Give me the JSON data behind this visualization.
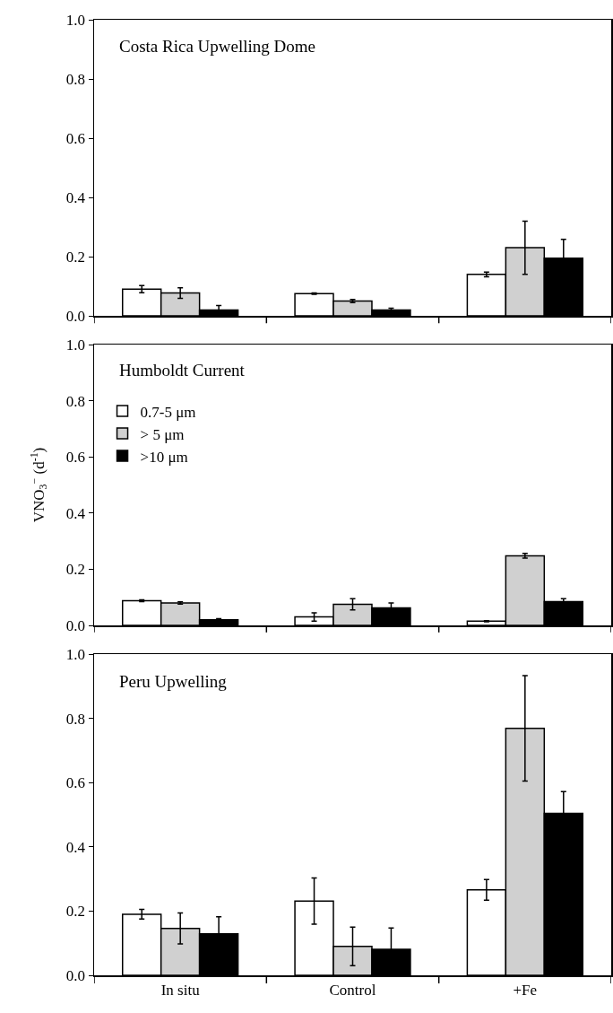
{
  "chart_data": [
    {
      "type": "bar",
      "title": "Costa Rica Upwelling Dome",
      "categories": [
        null,
        null,
        null
      ],
      "ylim": [
        0,
        1
      ],
      "yticks": [
        "0.0",
        0.2,
        0.4,
        0.6,
        0.8,
        "1.0"
      ],
      "tick_labels": "y",
      "grid": false,
      "legend": false,
      "series": [
        {
          "color": "#ffffff",
          "values": [
            0.09,
            0.075,
            0.14
          ],
          "errors": [
            0.012,
            0.002,
            0.008
          ]
        },
        {
          "color": "#d0d0d0",
          "values": [
            0.077,
            0.05,
            0.23
          ],
          "errors": [
            0.018,
            0.005,
            0.09
          ]
        },
        {
          "color": "#000000",
          "values": [
            0.02,
            0.02,
            0.195
          ],
          "errors": [
            0.015,
            0.006,
            0.063
          ]
        }
      ]
    },
    {
      "type": "bar",
      "title": "Humboldt Current",
      "ylabel": "VNO$_{3}$$^{−}$ (d$^{-1}$)",
      "categories": [
        null,
        null,
        null
      ],
      "ylim": [
        0,
        1
      ],
      "yticks": [
        "0.0",
        0.2,
        0.4,
        0.6,
        0.8,
        "1.0"
      ],
      "tick_labels": "y",
      "grid": false,
      "legend": "top left",
      "series": [
        {
          "name": "0.7-5 μm",
          "color": "#ffffff",
          "values": [
            0.088,
            0.03,
            0.015
          ],
          "errors": [
            0.003,
            0.015,
            0.002
          ]
        },
        {
          "name": "> 5 μm",
          "color": "#d0d0d0",
          "values": [
            0.08,
            0.075,
            0.248
          ],
          "errors": [
            0.004,
            0.02,
            0.008
          ]
        },
        {
          "name": ">10 μm",
          "color": "#000000",
          "values": [
            0.02,
            0.062,
            0.085
          ],
          "errors": [
            0.004,
            0.018,
            0.01
          ]
        }
      ]
    },
    {
      "type": "bar",
      "title": "Peru Upwelling",
      "categories": [
        "In situ",
        "Control",
        "+Fe"
      ],
      "ylim": [
        0,
        1
      ],
      "yticks": [
        "0.0",
        0.2,
        0.4,
        0.6,
        0.8,
        "1.0"
      ],
      "grid": false,
      "legend": false,
      "series": [
        {
          "color": "#ffffff",
          "values": [
            0.19,
            0.231,
            0.266
          ],
          "errors": [
            0.015,
            0.072,
            0.032
          ]
        },
        {
          "color": "#d0d0d0",
          "values": [
            0.146,
            0.09,
            0.769
          ],
          "errors": [
            0.048,
            0.06,
            0.164
          ]
        },
        {
          "color": "#000000",
          "values": [
            0.129,
            0.081,
            0.504
          ],
          "errors": [
            0.053,
            0.066,
            0.068
          ]
        }
      ]
    }
  ]
}
